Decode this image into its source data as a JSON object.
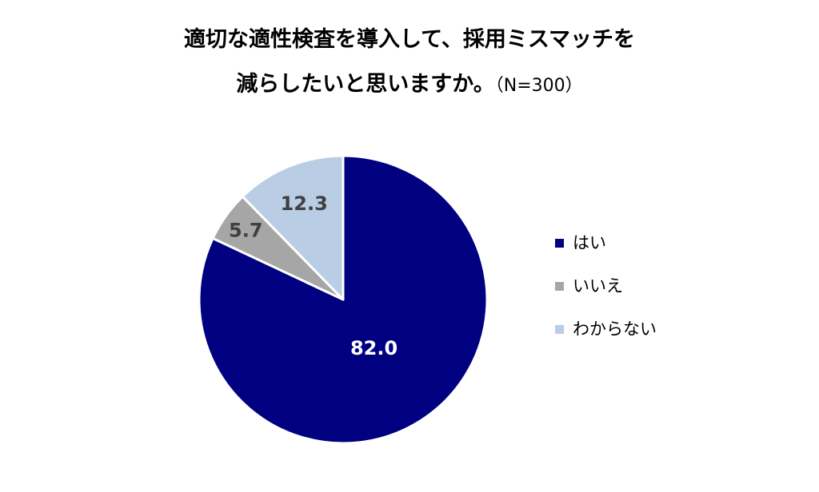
{
  "title": {
    "line1": "適切な適性検査を導入して、採用ミスマッチを",
    "line2": "減らしたいと思いますか。",
    "sample_size": "（N=300）"
  },
  "chart_data": {
    "type": "pie",
    "title": "適切な適性検査を導入して、採用ミスマッチを減らしたいと思いますか。（N=300）",
    "categories": [
      "はい",
      "いいえ",
      "わからない"
    ],
    "values": [
      82.0,
      5.7,
      12.3
    ],
    "value_labels": [
      "82.0",
      "5.7",
      "12.3"
    ],
    "colors": [
      "#000080",
      "#a6a6a6",
      "#b9cde5"
    ],
    "label_colors": [
      "#ffffff",
      "#404040",
      "#404040"
    ],
    "start": "12 o'clock, clockwise",
    "legend": "right"
  }
}
